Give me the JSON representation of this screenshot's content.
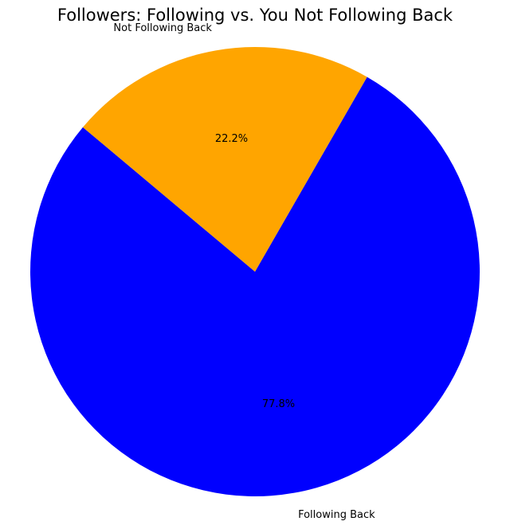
{
  "chart_data": {
    "type": "pie",
    "title": "Followers: Following vs. You Not Following Back",
    "labels": [
      "Following Back",
      "Not Following Back"
    ],
    "values": [
      77.8,
      22.2
    ],
    "percent_labels": [
      "77.8%",
      "22.2%"
    ],
    "colors": [
      "#0000ff",
      "#ffa500"
    ],
    "start_angle_deg": 140,
    "direction": "counterclockwise",
    "legend": "none"
  }
}
